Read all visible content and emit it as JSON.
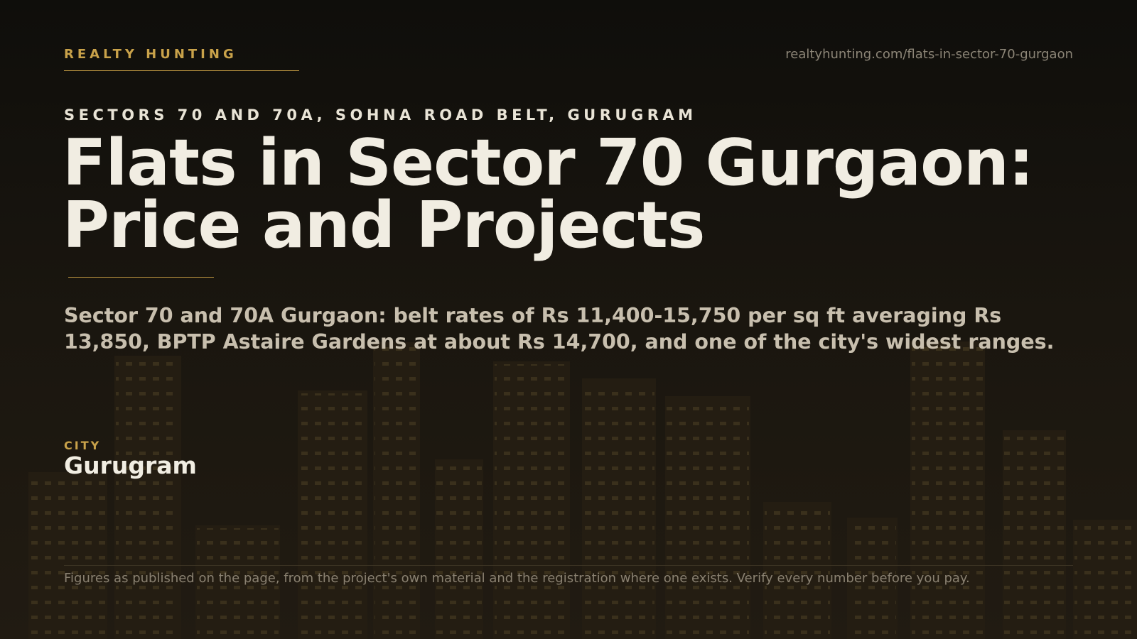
{
  "brand": "REALTY HUNTING",
  "url": "realtyhunting.com/flats-in-sector-70-gurgaon",
  "kicker": "SECTORS 70 AND 70A, SOHNA ROAD BELT, GURUGRAM",
  "title": "Flats in Sector 70 Gurgaon: Price and Projects",
  "summary": "Sector 70 and 70A Gurgaon: belt rates of Rs 11,400-15,750 per sq ft averaging Rs 13,850, BPTP Astaire Gardens at about Rs 14,700, and one of the city's widest ranges.",
  "city": {
    "label": "CITY",
    "value": "Gurugram"
  },
  "footnote": "Figures as published on the page, from the project's own material and the registration where one exists. Verify every number before you pay."
}
